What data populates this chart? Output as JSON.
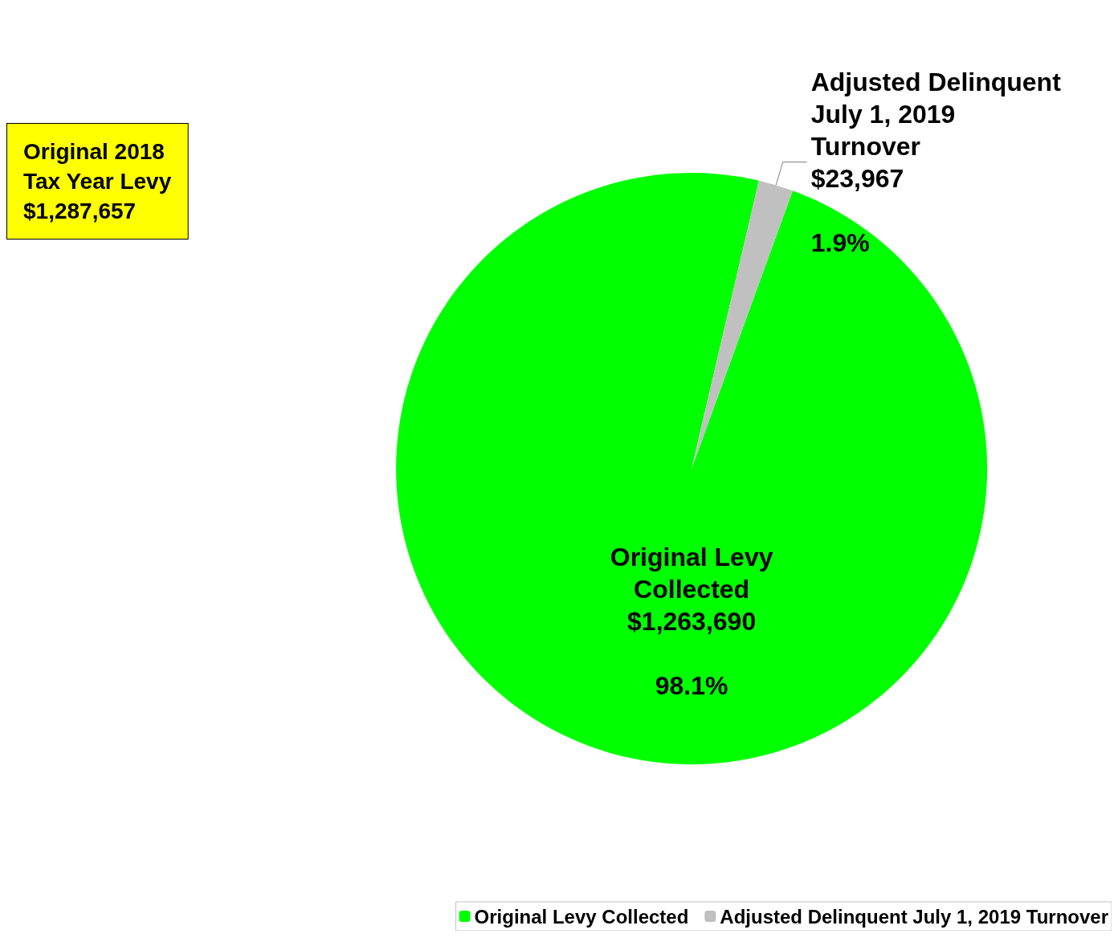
{
  "chart_data": {
    "type": "pie",
    "categories": [
      "Original Levy Collected",
      "Adjusted Delinquent July 1, 2019 Turnover"
    ],
    "values": [
      98.1,
      1.9
    ],
    "colors": [
      "#00ff00",
      "#c0c0c0"
    ],
    "value_labels": [
      "$1,263,690\n\n98.1%",
      "$23,967\n\n1.9%"
    ],
    "annotations": [
      "Original 2018\nTax Year Levy\n$1,287,657"
    ],
    "legend": "bottom right"
  }
}
